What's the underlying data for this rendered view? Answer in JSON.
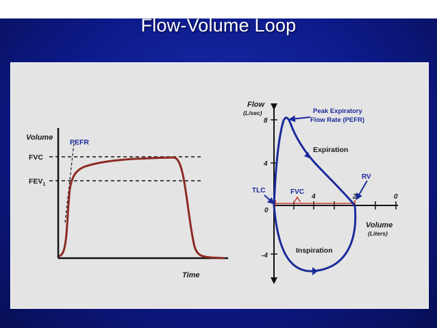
{
  "title": "Flow-Volume Loop",
  "left_chart": {
    "ylabel": "Volume",
    "xlabel": "Time",
    "fvc": "FVC",
    "fev": "FEV",
    "fev_sub": "1",
    "pefr": "PEFR",
    "colors": {
      "curve": "#8b2a22",
      "axis": "#111111"
    }
  },
  "right_chart": {
    "ylabel": "Flow",
    "yunit": "(L/sec)",
    "xlabel": "Volume",
    "xunit": "(Liters)",
    "y_ticks": [
      "8",
      "4",
      "0",
      "-4"
    ],
    "x_ticks": [
      "4",
      "2",
      "0"
    ],
    "pefr_label_1": "Peak Expiratory",
    "pefr_label_2": "Flow Rate (PEFR)",
    "expiration": "Expiration",
    "inspiration": "Inspiration",
    "rv": "RV",
    "tlc": "TLC",
    "fvc": "FVC",
    "colors": {
      "loop": "#1a2a9a",
      "fvc_bar": "#c0392b"
    }
  }
}
